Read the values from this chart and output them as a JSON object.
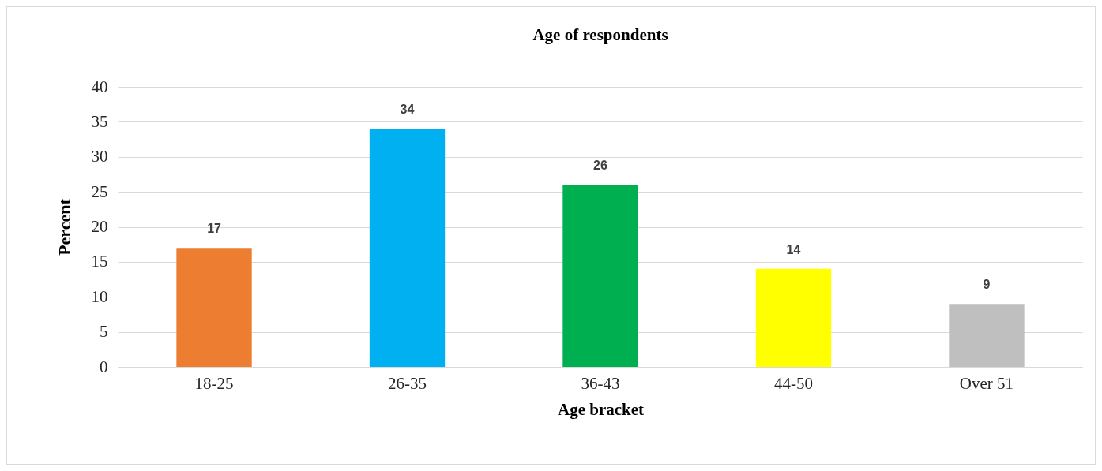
{
  "chart_data": {
    "type": "bar",
    "title": "Age of respondents",
    "xlabel": "Age bracket",
    "ylabel": "Percent",
    "categories": [
      "18-25",
      "26-35",
      "36-43",
      "44-50",
      "Over 51"
    ],
    "values": [
      17,
      34,
      26,
      14,
      9
    ],
    "colors": [
      "#ed7d31",
      "#00b0f0",
      "#00b050",
      "#ffff00",
      "#bfbfbf"
    ],
    "ylim": [
      0,
      40
    ],
    "yticks": [
      0,
      5,
      10,
      15,
      20,
      25,
      30,
      35,
      40
    ],
    "grid": "y",
    "data_labels": true,
    "legend": false
  }
}
